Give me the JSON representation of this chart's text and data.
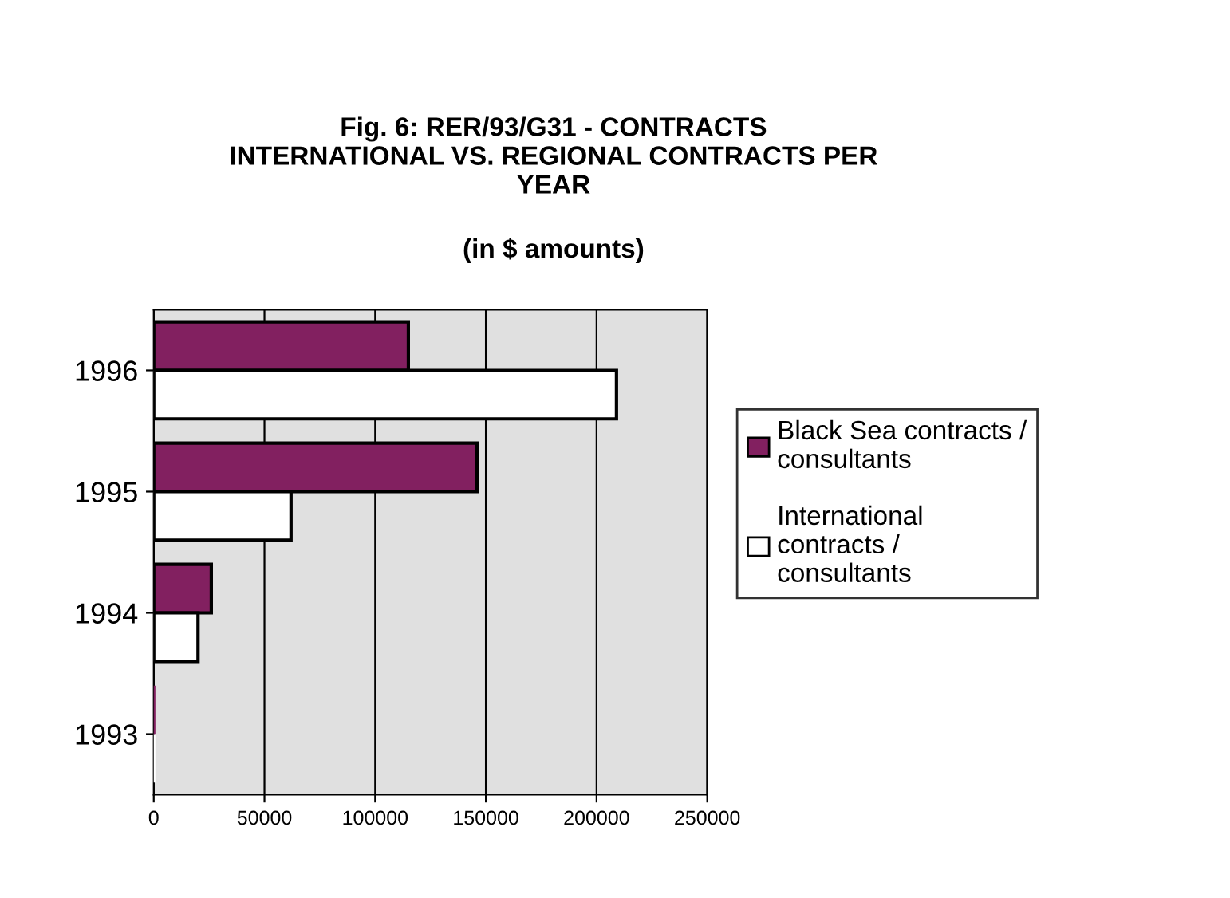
{
  "chart_data": {
    "type": "bar",
    "orientation": "horizontal",
    "title": "Fig. 6: RER/93/G31 - CONTRACTS\nINTERNATIONAL VS. REGIONAL CONTRACTS PER\nYEAR",
    "subtitle": "(in $ amounts)",
    "categories": [
      "1996",
      "1995",
      "1994",
      "1993"
    ],
    "series": [
      {
        "name": "Black Sea contracts /\nconsultants",
        "color": "#822060",
        "values": [
          115000,
          146000,
          26000,
          0
        ]
      },
      {
        "name": "International\ncontracts /\nconsultants",
        "color": "#ffffff",
        "values": [
          209000,
          62000,
          20000,
          0
        ]
      }
    ],
    "xlim": [
      0,
      250000
    ],
    "xticks": [
      0,
      50000,
      100000,
      150000,
      200000,
      250000
    ],
    "grid": "x",
    "legend": "right"
  }
}
